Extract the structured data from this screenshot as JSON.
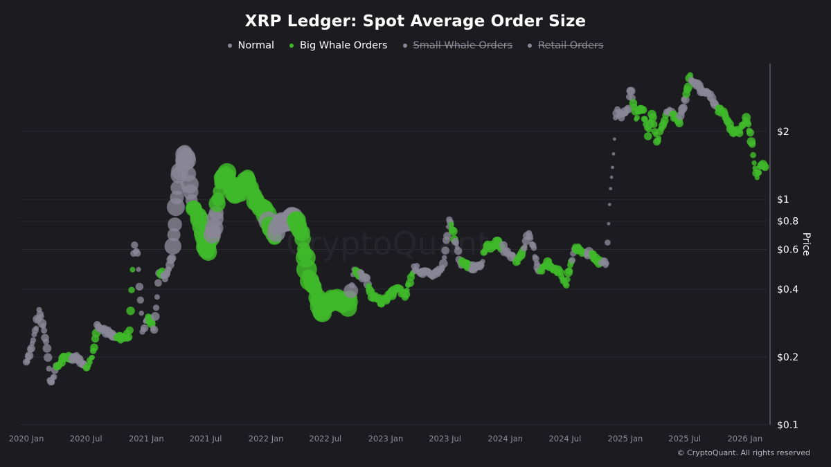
{
  "colors": {
    "background": "#1c1b20",
    "normal": "#8a8796",
    "big_whale": "#3fb82a",
    "grid": "#2b2a31",
    "axis": "#6c6a74"
  },
  "legend": [
    {
      "label": "Normal",
      "color": "#8a8796",
      "state": "on"
    },
    {
      "label": "Big Whale Orders",
      "color": "#3fb82a",
      "state": "on"
    },
    {
      "label": "Small Whale Orders",
      "color": "#8a8796",
      "state": "off"
    },
    {
      "label": "Retail Orders",
      "color": "#8a8796",
      "state": "off"
    }
  ],
  "watermark": "CryptoQuant",
  "copyright": "© CryptoQuant. All rights reserved",
  "chart_data": {
    "type": "scatter",
    "title": "XRP Ledger: Spot Average Order Size",
    "xlabel": "",
    "ylabel": "Price",
    "y_scale": "log",
    "ylim": [
      0.1,
      4.0
    ],
    "x_range": [
      "2019-12-15",
      "2026-03-10"
    ],
    "x_ticks": [
      "2020 Jan",
      "2020 Jul",
      "2021 Jan",
      "2021 Jul",
      "2022 Jan",
      "2022 Jul",
      "2023 Jan",
      "2023 Jul",
      "2024 Jan",
      "2024 Jul",
      "2025 Jan",
      "2025 Jul",
      "2026 Jan"
    ],
    "y_ticks": [
      {
        "value": 0.1,
        "label": "$0.1"
      },
      {
        "value": 0.2,
        "label": "$0.2"
      },
      {
        "value": 0.4,
        "label": "$0.4"
      },
      {
        "value": 0.6,
        "label": "$0.6"
      },
      {
        "value": 0.8,
        "label": "$0.8"
      },
      {
        "value": 1,
        "label": "$1"
      },
      {
        "value": 2,
        "label": "$2"
      }
    ],
    "series": [
      {
        "name": "Normal",
        "color": "#8a8796"
      },
      {
        "name": "Big Whale Orders",
        "color": "#3fb82a"
      }
    ],
    "price_path": [
      [
        "2020-01-01",
        0.19
      ],
      [
        "2020-01-20",
        0.23
      ],
      [
        "2020-02-10",
        0.32
      ],
      [
        "2020-02-20",
        0.28
      ],
      [
        "2020-03-05",
        0.22
      ],
      [
        "2020-03-14",
        0.15
      ],
      [
        "2020-04-01",
        0.18
      ],
      [
        "2020-05-01",
        0.2
      ],
      [
        "2020-06-01",
        0.2
      ],
      [
        "2020-07-01",
        0.18
      ],
      [
        "2020-07-20",
        0.2
      ],
      [
        "2020-08-05",
        0.28
      ],
      [
        "2020-09-01",
        0.26
      ],
      [
        "2020-10-01",
        0.24
      ],
      [
        "2020-11-10",
        0.25
      ],
      [
        "2020-11-24",
        0.62
      ],
      [
        "2020-12-05",
        0.58
      ],
      [
        "2020-12-20",
        0.26
      ],
      [
        "2021-01-05",
        0.3
      ],
      [
        "2021-01-25",
        0.27
      ],
      [
        "2021-02-10",
        0.48
      ],
      [
        "2021-03-01",
        0.45
      ],
      [
        "2021-03-20",
        0.55
      ],
      [
        "2021-04-10",
        1.3
      ],
      [
        "2021-04-25",
        1.6
      ],
      [
        "2021-05-05",
        1.5
      ],
      [
        "2021-05-20",
        0.95
      ],
      [
        "2021-06-10",
        0.85
      ],
      [
        "2021-06-25",
        0.62
      ],
      [
        "2021-07-10",
        0.6
      ],
      [
        "2021-07-25",
        0.72
      ],
      [
        "2021-08-15",
        1.2
      ],
      [
        "2021-09-05",
        1.35
      ],
      [
        "2021-09-25",
        1.05
      ],
      [
        "2021-10-15",
        1.1
      ],
      [
        "2021-11-10",
        1.25
      ],
      [
        "2021-12-05",
        0.95
      ],
      [
        "2021-12-25",
        0.9
      ],
      [
        "2022-01-10",
        0.8
      ],
      [
        "2022-01-25",
        0.65
      ],
      [
        "2022-02-10",
        0.82
      ],
      [
        "2022-03-01",
        0.78
      ],
      [
        "2022-03-28",
        0.85
      ],
      [
        "2022-04-20",
        0.7
      ],
      [
        "2022-05-10",
        0.45
      ],
      [
        "2022-06-01",
        0.4
      ],
      [
        "2022-06-20",
        0.32
      ],
      [
        "2022-07-20",
        0.36
      ],
      [
        "2022-08-15",
        0.35
      ],
      [
        "2022-09-10",
        0.34
      ],
      [
        "2022-09-25",
        0.48
      ],
      [
        "2022-10-15",
        0.46
      ],
      [
        "2022-11-01",
        0.46
      ],
      [
        "2022-11-15",
        0.38
      ],
      [
        "2022-12-20",
        0.35
      ],
      [
        "2023-01-15",
        0.38
      ],
      [
        "2023-02-10",
        0.4
      ],
      [
        "2023-03-01",
        0.37
      ],
      [
        "2023-03-29",
        0.5
      ],
      [
        "2023-04-20",
        0.48
      ],
      [
        "2023-05-20",
        0.46
      ],
      [
        "2023-06-15",
        0.48
      ],
      [
        "2023-06-25",
        0.5
      ],
      [
        "2023-07-14",
        0.8
      ],
      [
        "2023-07-25",
        0.72
      ],
      [
        "2023-08-18",
        0.52
      ],
      [
        "2023-09-20",
        0.5
      ],
      [
        "2023-10-20",
        0.52
      ],
      [
        "2023-11-05",
        0.63
      ],
      [
        "2023-11-20",
        0.62
      ],
      [
        "2023-12-10",
        0.64
      ],
      [
        "2024-01-10",
        0.58
      ],
      [
        "2024-02-10",
        0.53
      ],
      [
        "2024-03-11",
        0.7
      ],
      [
        "2024-03-25",
        0.62
      ],
      [
        "2024-04-13",
        0.48
      ],
      [
        "2024-05-10",
        0.52
      ],
      [
        "2024-06-10",
        0.48
      ],
      [
        "2024-07-05",
        0.42
      ],
      [
        "2024-07-31",
        0.62
      ],
      [
        "2024-08-20",
        0.58
      ],
      [
        "2024-09-20",
        0.58
      ],
      [
        "2024-10-10",
        0.53
      ],
      [
        "2024-11-05",
        0.52
      ],
      [
        "2024-11-16",
        1.1
      ],
      [
        "2024-11-25",
        1.45
      ],
      [
        "2024-12-03",
        2.5
      ],
      [
        "2024-12-20",
        2.3
      ],
      [
        "2025-01-10",
        2.5
      ],
      [
        "2025-01-16",
        3.1
      ],
      [
        "2025-02-03",
        2.3
      ],
      [
        "2025-02-20",
        2.6
      ],
      [
        "2025-03-11",
        1.95
      ],
      [
        "2025-03-25",
        2.4
      ],
      [
        "2025-04-07",
        1.8
      ],
      [
        "2025-05-12",
        2.5
      ],
      [
        "2025-06-15",
        2.2
      ],
      [
        "2025-07-18",
        3.5
      ],
      [
        "2025-08-10",
        3.2
      ],
      [
        "2025-08-25",
        3.0
      ],
      [
        "2025-09-20",
        2.9
      ],
      [
        "2025-10-10",
        2.5
      ],
      [
        "2025-11-01",
        2.4
      ],
      [
        "2025-11-20",
        2.0
      ],
      [
        "2025-12-15",
        2.0
      ],
      [
        "2026-01-06",
        2.3
      ],
      [
        "2026-01-20",
        1.85
      ],
      [
        "2026-02-05",
        1.25
      ],
      [
        "2026-02-20",
        1.45
      ],
      [
        "2026-03-05",
        1.4
      ]
    ],
    "big_whale_periods": [
      [
        "2020-04-01",
        "2020-05-20"
      ],
      [
        "2020-07-01",
        "2020-08-01"
      ],
      [
        "2020-10-01",
        "2020-11-15"
      ],
      [
        "2020-11-15",
        "2020-11-20"
      ],
      [
        "2021-01-05",
        "2021-01-20"
      ],
      [
        "2021-02-10",
        "2021-02-18"
      ],
      [
        "2021-05-20",
        "2021-07-20"
      ],
      [
        "2021-08-05",
        "2022-01-05"
      ],
      [
        "2022-01-10",
        "2022-01-30"
      ],
      [
        "2022-03-28",
        "2022-09-15"
      ],
      [
        "2022-10-01",
        "2022-10-15"
      ],
      [
        "2022-11-10",
        "2023-03-25"
      ],
      [
        "2023-07-20",
        "2023-07-30"
      ],
      [
        "2023-08-20",
        "2023-09-20"
      ],
      [
        "2023-10-25",
        "2023-12-25"
      ],
      [
        "2024-02-01",
        "2024-02-25"
      ],
      [
        "2024-04-15",
        "2024-07-20"
      ],
      [
        "2024-07-31",
        "2024-09-05"
      ],
      [
        "2024-09-20",
        "2024-10-20"
      ],
      [
        "2025-01-25",
        "2025-05-05"
      ],
      [
        "2025-05-25",
        "2025-06-15"
      ],
      [
        "2025-07-05",
        "2025-07-20"
      ],
      [
        "2025-10-10",
        "2026-03-05"
      ]
    ]
  }
}
